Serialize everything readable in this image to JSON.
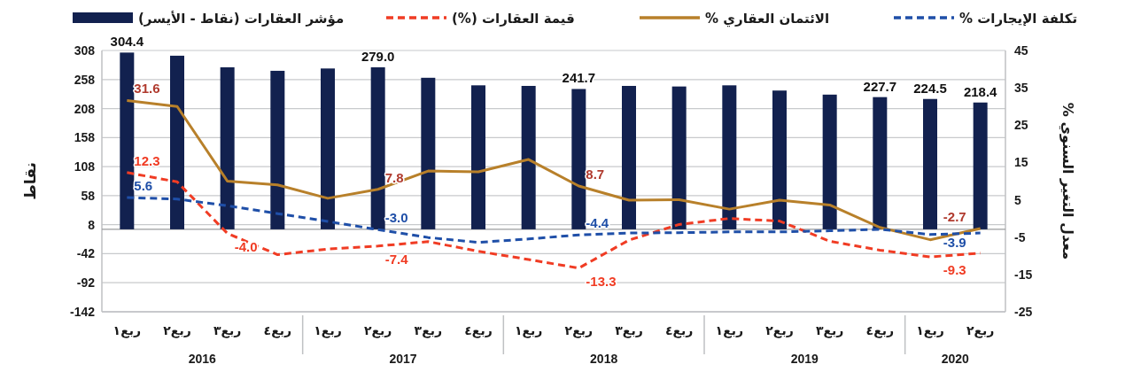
{
  "chart_data": {
    "type": "bar",
    "categories": [
      "ربع١",
      "ربع٢",
      "ربع٣",
      "ربع٤",
      "ربع١",
      "ربع٢",
      "ربع٣",
      "ربع٤",
      "ربع١",
      "ربع٢",
      "ربع٣",
      "ربع٤",
      "ربع١",
      "ربع٢",
      "ربع٣",
      "ربع٤",
      "ربع١",
      "ربع٢"
    ],
    "series": [
      {
        "name": "مؤشر العقارات (نقاط - الأيسر)",
        "color": "#12214f",
        "values": [
          304.4,
          299,
          279,
          273,
          277,
          279.0,
          261,
          248,
          247,
          241.7,
          247,
          246,
          248,
          239,
          232,
          227.7,
          224.5,
          218.4
        ],
        "value_labels": [
          "304.4",
          null,
          null,
          null,
          null,
          "279.0",
          null,
          null,
          null,
          "241.7",
          null,
          null,
          null,
          null,
          null,
          "227.7",
          "224.5",
          "218.4"
        ]
      },
      {
        "name": "قيمة العقارات (%)",
        "type": "line",
        "axis": "y2",
        "line_style": "dashed",
        "color": "#f03c24",
        "values": [
          12.3,
          9.8,
          -4.0,
          -9.7,
          -8.2,
          -7.4,
          -6.2,
          -8.8,
          -11,
          -13.3,
          -5.8,
          -1.6,
          0,
          -0.7,
          -6.1,
          -8.5,
          -10.3,
          -9.3
        ],
        "value_labels": [
          "12.3",
          null,
          "-4.0",
          null,
          null,
          "-7.4",
          null,
          null,
          null,
          "-13.3",
          null,
          null,
          null,
          null,
          null,
          null,
          null,
          "-9.3"
        ]
      },
      {
        "name": "الائتمان العقاري %",
        "type": "line",
        "axis": "y2",
        "line_style": "solid",
        "color": "#b8802a",
        "values": [
          31.6,
          30.0,
          10.0,
          9.0,
          5.4,
          7.8,
          12.7,
          12.5,
          15.8,
          8.7,
          4.9,
          5.0,
          2.5,
          4.9,
          3.6,
          -2.4,
          -5.7,
          -2.7
        ],
        "value_labels": [
          "31.6",
          null,
          null,
          null,
          null,
          "7.8",
          null,
          null,
          null,
          "8.7",
          null,
          null,
          null,
          null,
          null,
          null,
          null,
          "-2.7"
        ]
      },
      {
        "name": "تكلفة الإيجارات %",
        "type": "line",
        "axis": "y2",
        "line_style": "dashed",
        "color": "#1f4fa8",
        "values": [
          5.6,
          5.2,
          3.4,
          1.3,
          -0.8,
          -3.0,
          -5.1,
          -6.4,
          -5.5,
          -4.4,
          -3.9,
          -3.8,
          -3.6,
          -3.6,
          -3.3,
          -2.9,
          -4.3,
          -3.9
        ],
        "value_labels": [
          "5.6",
          null,
          null,
          null,
          null,
          "-3.0",
          null,
          null,
          null,
          "-4.4",
          null,
          null,
          null,
          null,
          null,
          null,
          null,
          "-3.9"
        ]
      }
    ],
    "ylabel": "نقاط",
    "y2label": "معدل التغير السنوي %",
    "ylim": [
      -142,
      308
    ],
    "yticks": [
      -142,
      -92,
      -42,
      8,
      58,
      108,
      158,
      208,
      258,
      308
    ],
    "y2lim": [
      -25,
      45
    ],
    "y2ticks": [
      -25,
      -15,
      -5,
      5,
      15,
      25,
      35,
      45
    ],
    "grid": "y",
    "legend": "top",
    "annotations": [
      "2016",
      "2017",
      "2018",
      "2019",
      "2020"
    ]
  }
}
